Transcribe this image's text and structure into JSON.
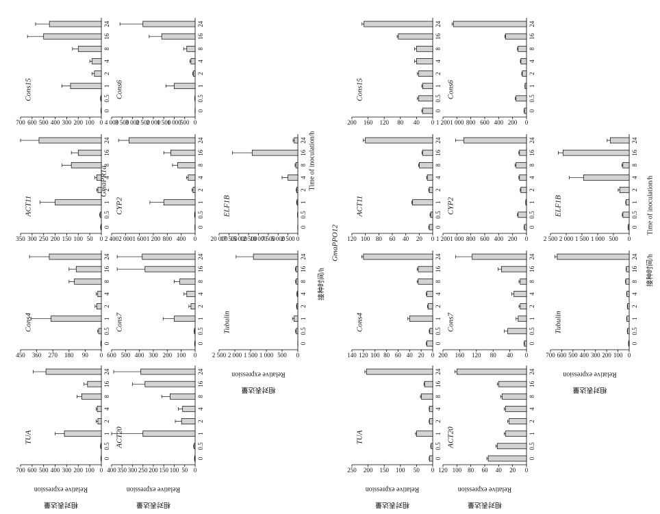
{
  "groups": [
    "GmaPR1a",
    "GmaPPO12"
  ],
  "y_label": "Relative expression",
  "y_label_cn": "相对表达量",
  "x_label": "Time of inoculation/h",
  "x_label_cn": "接种时间/h",
  "chart_data": [
    {
      "type": "bar",
      "title": "TUA",
      "categories": [
        "0",
        "0.5",
        "1",
        "2",
        "4",
        "8",
        "16",
        "24"
      ],
      "values": [
        2,
        5,
        320,
        30,
        35,
        170,
        120,
        480
      ],
      "errors": [
        1,
        2,
        80,
        15,
        10,
        40,
        30,
        110
      ],
      "color": "#d3d3d3",
      "ylim": [
        0,
        700
      ],
      "yticks": [
        0,
        100,
        200,
        300,
        400,
        500,
        600,
        700
      ]
    },
    {
      "type": "bar",
      "title": "Cons4",
      "categories": [
        "0",
        "0.5",
        "1",
        "2",
        "4",
        "8",
        "16",
        "24"
      ],
      "values": [
        2,
        15,
        280,
        25,
        20,
        150,
        140,
        290
      ],
      "errors": [
        1,
        5,
        110,
        10,
        8,
        30,
        40,
        110
      ],
      "color": "#d3d3d3",
      "ylim": [
        0,
        450
      ],
      "yticks": [
        0,
        90,
        180,
        270,
        360,
        450
      ]
    },
    {
      "type": "bar",
      "title": "ACT11",
      "categories": [
        "0",
        "0.5",
        "1",
        "2",
        "4",
        "8",
        "16",
        "24"
      ],
      "values": [
        2,
        5,
        200,
        15,
        20,
        130,
        100,
        270
      ],
      "errors": [
        1,
        2,
        65,
        5,
        8,
        40,
        30,
        80
      ],
      "color": "#d3d3d3",
      "ylim": [
        0,
        350
      ],
      "yticks": [
        0,
        50,
        100,
        150,
        200,
        250,
        300,
        350
      ]
    },
    {
      "type": "bar",
      "title": "Cons15",
      "categories": [
        "0",
        "0.5",
        "1",
        "2",
        "4",
        "8",
        "16",
        "24"
      ],
      "values": [
        2,
        5,
        267,
        60,
        80,
        200,
        500,
        450
      ],
      "errors": [
        1,
        2,
        75,
        20,
        20,
        50,
        140,
        120
      ],
      "color": "#d3d3d3",
      "ylim": [
        0,
        700
      ],
      "yticks": [
        0,
        100,
        200,
        300,
        400,
        500,
        600,
        700
      ]
    },
    {
      "type": "bar",
      "title": "ACT20",
      "categories": [
        "0",
        "0.5",
        "1",
        "2",
        "4",
        "8",
        "16",
        "24"
      ],
      "values": [
        2,
        5,
        250,
        65,
        60,
        120,
        240,
        260
      ],
      "errors": [
        1,
        2,
        150,
        30,
        20,
        40,
        60,
        130
      ],
      "color": "#d3d3d3",
      "ylim": [
        0,
        400
      ],
      "yticks": [
        0,
        50,
        100,
        150,
        200,
        250,
        300,
        350,
        400
      ]
    },
    {
      "type": "bar",
      "title": "Cons7",
      "categories": [
        "0",
        "0.5",
        "1",
        "2",
        "4",
        "8",
        "16",
        "24"
      ],
      "values": [
        2,
        5,
        150,
        30,
        60,
        110,
        360,
        380
      ],
      "errors": [
        1,
        2,
        80,
        15,
        20,
        40,
        200,
        180
      ],
      "color": "#d3d3d3",
      "ylim": [
        0,
        600
      ],
      "yticks": [
        0,
        100,
        200,
        300,
        400,
        500,
        600
      ]
    },
    {
      "type": "bar",
      "title": "CYP2",
      "categories": [
        "0",
        "0.5",
        "1",
        "2",
        "4",
        "8",
        "16",
        "24"
      ],
      "values": [
        5,
        10,
        900,
        60,
        200,
        500,
        700,
        1900
      ],
      "errors": [
        2,
        5,
        400,
        30,
        50,
        150,
        200,
        300
      ],
      "color": "#d3d3d3",
      "ylim": [
        0,
        2400
      ],
      "yticks": [
        0,
        400,
        800,
        {
          "value": 1200,
          "label": "1 200"
        },
        {
          "value": 1600,
          "label": "1 600"
        },
        {
          "value": 2000,
          "label": "2 000"
        },
        {
          "value": 2400,
          "label": "2 400"
        }
      ]
    },
    {
      "type": "bar",
      "title": "Cons6",
      "categories": [
        "0",
        "0.5",
        "1",
        "2",
        "4",
        "8",
        "16",
        "24"
      ],
      "values": [
        5,
        10,
        1000,
        80,
        200,
        400,
        1600,
        2500
      ],
      "errors": [
        2,
        5,
        400,
        30,
        50,
        150,
        600,
        1100
      ],
      "color": "#d3d3d3",
      "ylim": [
        0,
        4000
      ],
      "yticks": [
        0,
        500,
        {
          "value": 1000,
          "label": "1 000"
        },
        {
          "value": 1500,
          "label": "1 500"
        },
        {
          "value": 2000,
          "label": "2 000"
        },
        {
          "value": 2500,
          "label": "2 500"
        },
        {
          "value": 3000,
          "label": "3 000"
        },
        {
          "value": 3500,
          "label": "3 500"
        },
        {
          "value": 4000,
          "label": "4 000"
        }
      ]
    },
    {
      "type": "bar",
      "title": "Tubulin",
      "categories": [
        "0",
        "0.5",
        "1",
        "2",
        "4",
        "8",
        "16",
        "24"
      ],
      "values": [
        2,
        50,
        120,
        30,
        20,
        50,
        60,
        1410
      ],
      "errors": [
        1,
        20,
        50,
        10,
        10,
        20,
        20,
        550
      ],
      "color": "#d3d3d3",
      "ylim": [
        0,
        2500
      ],
      "yticks": [
        0,
        500,
        {
          "value": 1000,
          "label": "1 000"
        },
        {
          "value": 1500,
          "label": "1 500"
        },
        {
          "value": 2000,
          "label": "2 000"
        },
        {
          "value": 2500,
          "label": "2 500"
        }
      ]
    },
    {
      "type": "bar",
      "title": "ELF1B",
      "categories": [
        "0",
        "0.5",
        "1",
        "2",
        "4",
        "8",
        "16",
        "24"
      ],
      "values": [
        20,
        50,
        200,
        300,
        2500,
        500,
        11600,
        900
      ],
      "errors": [
        10,
        20,
        100,
        100,
        1500,
        200,
        5000,
        300
      ],
      "color": "#d3d3d3",
      "ylim": [
        0,
        20000
      ],
      "yticks": [
        0,
        {
          "value": 2500,
          "label": "2 500"
        },
        {
          "value": 5000,
          "label": "5 000"
        },
        {
          "value": 7500,
          "label": "7 500"
        },
        {
          "value": 10000,
          "label": "10 000"
        },
        {
          "value": 12500,
          "label": "12 500"
        },
        {
          "value": 15000,
          "label": "15 000"
        },
        {
          "value": 17500,
          "label": "17 500"
        },
        {
          "value": 20000,
          "label": "20 000"
        }
      ]
    },
    {
      "type": "bar",
      "title": "TUA",
      "categories": [
        "0",
        "0.5",
        "1",
        "2",
        "4",
        "8",
        "16",
        "24"
      ],
      "values": [
        10,
        5,
        50,
        10,
        10,
        35,
        25,
        205
      ],
      "errors": [
        1,
        1,
        3,
        1,
        1,
        3,
        2,
        5
      ],
      "color": "#d3d3d3",
      "ylim": [
        0,
        250
      ],
      "yticks": [
        0,
        50,
        100,
        150,
        200,
        250
      ]
    },
    {
      "type": "bar",
      "title": "Cons4",
      "categories": [
        "0",
        "0.5",
        "1",
        "2",
        "4",
        "8",
        "16",
        "24"
      ],
      "values": [
        10,
        5,
        40,
        8,
        10,
        25,
        25,
        120
      ],
      "errors": [
        1,
        1,
        3,
        1,
        1,
        2,
        2,
        3
      ],
      "color": "#d3d3d3",
      "ylim": [
        0,
        140
      ],
      "yticks": [
        0,
        20,
        40,
        60,
        80,
        100,
        120,
        140
      ]
    },
    {
      "type": "bar",
      "title": "ACT11",
      "categories": [
        "0",
        "0.5",
        "1",
        "2",
        "4",
        "8",
        "16",
        "24"
      ],
      "values": [
        5,
        3,
        30,
        5,
        8,
        20,
        15,
        100
      ],
      "errors": [
        1,
        1,
        1,
        1,
        1,
        1,
        1,
        3
      ],
      "color": "#d3d3d3",
      "ylim": [
        0,
        120
      ],
      "yticks": [
        0,
        20,
        40,
        60,
        80,
        100,
        120
      ]
    },
    {
      "type": "bar",
      "title": "Cons15",
      "categories": [
        "0",
        "0.5",
        "1",
        "2",
        "4",
        "8",
        "16",
        "24"
      ],
      "values": [
        25,
        35,
        25,
        35,
        40,
        40,
        85,
        170
      ],
      "errors": [
        2,
        3,
        2,
        3,
        5,
        5,
        3,
        5
      ],
      "color": "#d3d3d3",
      "ylim": [
        0,
        200
      ],
      "yticks": [
        0,
        40,
        80,
        120,
        160,
        200
      ]
    },
    {
      "type": "bar",
      "title": "ACT20",
      "categories": [
        "0",
        "0.5",
        "1",
        "2",
        "4",
        "8",
        "16",
        "24"
      ],
      "values": [
        55,
        42,
        30,
        25,
        30,
        35,
        40,
        100
      ],
      "errors": [
        2,
        2,
        2,
        2,
        2,
        2,
        2,
        3
      ],
      "color": "#d3d3d3",
      "ylim": [
        0,
        120
      ],
      "yticks": [
        0,
        20,
        40,
        60,
        80,
        100,
        120
      ]
    },
    {
      "type": "bar",
      "title": "Cons7",
      "categories": [
        "0",
        "0.5",
        "1",
        "2",
        "4",
        "8",
        "16",
        "24"
      ],
      "values": [
        5,
        45,
        20,
        15,
        30,
        15,
        60,
        130
      ],
      "errors": [
        1,
        8,
        5,
        3,
        5,
        3,
        8,
        40
      ],
      "color": "#d3d3d3",
      "ylim": [
        0,
        200
      ],
      "yticks": [
        0,
        40,
        80,
        120,
        160,
        200
      ]
    },
    {
      "type": "bar",
      "title": "CYP2",
      "categories": [
        "0",
        "0.5",
        "1",
        "2",
        "4",
        "8",
        "16",
        "24"
      ],
      "values": [
        30,
        120,
        10,
        80,
        100,
        150,
        100,
        900
      ],
      "errors": [
        5,
        10,
        2,
        10,
        10,
        15,
        10,
        120
      ],
      "color": "#d3d3d3",
      "ylim": [
        0,
        1200
      ],
      "yticks": [
        0,
        200,
        400,
        600,
        800,
        {
          "value": 1000,
          "label": "1 000"
        },
        {
          "value": 1200,
          "label": "1 200"
        }
      ]
    },
    {
      "type": "bar",
      "title": "Cons6",
      "categories": [
        "0",
        "0.5",
        "1",
        "2",
        "4",
        "8",
        "16",
        "24"
      ],
      "values": [
        30,
        150,
        20,
        60,
        80,
        120,
        300,
        1050
      ],
      "errors": [
        5,
        10,
        3,
        8,
        8,
        10,
        10,
        20
      ],
      "color": "#d3d3d3",
      "ylim": [
        0,
        1200
      ],
      "yticks": [
        0,
        200,
        400,
        600,
        800,
        {
          "value": 1000,
          "label": "1 000"
        },
        {
          "value": 1200,
          "label": "1 200"
        }
      ]
    },
    {
      "type": "bar",
      "title": "Tubulin",
      "categories": [
        "0",
        "0.5",
        "1",
        "2",
        "4",
        "8",
        "16",
        "24"
      ],
      "values": [
        5,
        15,
        20,
        15,
        20,
        30,
        25,
        640
      ],
      "errors": [
        1,
        2,
        2,
        2,
        2,
        3,
        2,
        20
      ],
      "color": "#d3d3d3",
      "ylim": [
        0,
        700
      ],
      "yticks": [
        0,
        100,
        200,
        300,
        400,
        500,
        600,
        700
      ]
    },
    {
      "type": "bar",
      "title": "ELF1B",
      "categories": [
        "0",
        "0.5",
        "1",
        "2",
        "4",
        "8",
        "16",
        "24"
      ],
      "values": [
        30,
        200,
        100,
        300,
        1450,
        200,
        2100,
        600
      ],
      "errors": [
        5,
        20,
        10,
        50,
        450,
        30,
        150,
        100
      ],
      "color": "#d3d3d3",
      "ylim": [
        0,
        2500
      ],
      "yticks": [
        0,
        500,
        {
          "value": 1000,
          "label": "1 000"
        },
        {
          "value": 1500,
          "label": "1 500"
        },
        {
          "value": 2000,
          "label": "2 000"
        },
        {
          "value": 2500,
          "label": "2 500"
        }
      ]
    }
  ]
}
